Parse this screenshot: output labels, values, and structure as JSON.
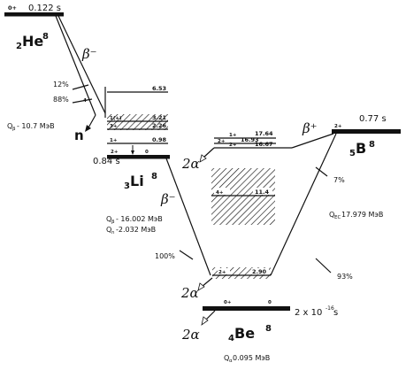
{
  "nuclei": {
    "he8": {
      "z": "2",
      "sym": "He",
      "a": "8",
      "gs_spin": "0+",
      "halflife": "0.122 s",
      "q_beta": "Q",
      "q_beta_sub": "β",
      "q_beta_val": "- 10.7 МэВ"
    },
    "li8": {
      "z": "3",
      "sym": "Li",
      "a": "8",
      "gs_spin": "2+",
      "gs_energy": "0",
      "halflife": "0.84 s",
      "q_beta": "Q",
      "q_beta_sub": "β",
      "q_beta_val": "- 16.002 МэВ",
      "q_n": "Q",
      "q_n_sub": "n",
      "q_n_val": "-2.032 МэВ"
    },
    "b8": {
      "z": "5",
      "sym": "B",
      "a": "8",
      "gs_spin": "2+",
      "halflife": "0.77 s",
      "q_ec": "Q",
      "q_ec_sub": "EC",
      "q_ec_val": " 17.979 МэВ"
    },
    "be8": {
      "z": "4",
      "sym": "Be",
      "a": "8",
      "gs_spin": "0+",
      "gs_energy": "0",
      "halflife_pre": "2 x 10",
      "halflife_exp": "-16",
      "halflife_post": " s",
      "q_alpha": "Q",
      "q_alpha_sub": "α",
      "q_alpha_val": " 0.095 МэВ"
    }
  },
  "li8_levels": [
    {
      "spin": "",
      "energy": "6.53"
    },
    {
      "spin": "1(+)",
      "energy": "3.21"
    },
    {
      "spin": "3+",
      "energy": "2.26"
    },
    {
      "spin": "1+",
      "energy": "0.98"
    }
  ],
  "be8_levels": [
    {
      "spin": "2+",
      "energy": "17.64"
    },
    {
      "spin": "1+",
      "energy": "16.93"
    },
    {
      "spin": "2+",
      "energy": "16.67"
    },
    {
      "spin": "4+",
      "energy": "11.4"
    },
    {
      "spin": "2+",
      "energy": "2.90"
    }
  ],
  "branches": {
    "he8_12": "12%",
    "he8_88": "88%",
    "he8_dangling": "4",
    "li8_100": "100%",
    "b8_7": "7%",
    "b8_93": "93%"
  },
  "decay_labels": {
    "beta_minus": "β⁻",
    "beta_plus": "β⁺",
    "neutron": "n",
    "alpha": "2α"
  },
  "colors": {
    "ink": "#111111",
    "paper": "#ffffff"
  }
}
